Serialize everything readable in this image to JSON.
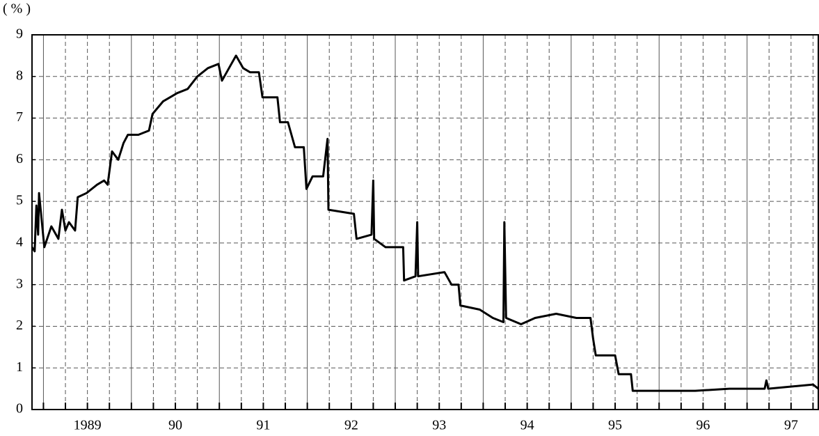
{
  "chart_data": {
    "type": "line",
    "y_axis_label": "( % )",
    "x": [
      1988.87,
      1988.9,
      1988.92,
      1988.94,
      1988.95,
      1989.01,
      1989.09,
      1989.17,
      1989.21,
      1989.25,
      1989.29,
      1989.36,
      1989.39,
      1989.49,
      1989.61,
      1989.69,
      1989.73,
      1989.78,
      1989.85,
      1989.91,
      1989.96,
      1990.08,
      1990.2,
      1990.24,
      1990.36,
      1990.44,
      1990.52,
      1990.64,
      1990.75,
      1990.87,
      1990.99,
      1991.03,
      1991.11,
      1991.19,
      1991.27,
      1991.35,
      1991.45,
      1991.49,
      1991.66,
      1991.69,
      1991.78,
      1991.86,
      1991.96,
      1991.99,
      1992.06,
      1992.18,
      1992.23,
      1992.24,
      1992.53,
      1992.56,
      1992.73,
      1992.75,
      1992.76,
      1992.89,
      1993.09,
      1993.1,
      1993.23,
      1993.25,
      1993.26,
      1993.56,
      1993.64,
      1993.72,
      1993.74,
      1993.96,
      1994.11,
      1994.23,
      1994.24,
      1994.26,
      1994.43,
      1994.59,
      1994.83,
      1995.06,
      1995.22,
      1995.25,
      1995.28,
      1995.5,
      1995.54,
      1995.68,
      1995.7,
      1996.09,
      1996.41,
      1996.8,
      1997.2,
      1997.22,
      1997.24,
      1997.75,
      1997.81
    ],
    "series": [
      {
        "color": "#000000",
        "values": [
          3.9,
          3.8,
          4.9,
          4.2,
          5.2,
          3.9,
          4.4,
          4.1,
          4.8,
          4.3,
          4.5,
          4.3,
          5.1,
          5.2,
          5.4,
          5.5,
          5.4,
          6.2,
          6.0,
          6.4,
          6.6,
          6.6,
          6.7,
          7.1,
          7.4,
          7.5,
          7.6,
          7.7,
          8.0,
          8.2,
          8.3,
          7.9,
          8.2,
          8.5,
          8.2,
          8.1,
          8.1,
          7.5,
          7.5,
          6.9,
          6.9,
          6.3,
          6.3,
          5.3,
          5.6,
          5.6,
          6.5,
          4.8,
          4.7,
          4.1,
          4.2,
          5.5,
          4.1,
          3.9,
          3.9,
          3.1,
          3.2,
          4.5,
          3.2,
          3.3,
          3.0,
          3.0,
          2.5,
          2.4,
          2.2,
          2.1,
          4.5,
          2.2,
          2.05,
          2.2,
          2.3,
          2.2,
          2.2,
          1.7,
          1.3,
          1.3,
          0.85,
          0.85,
          0.45,
          0.45,
          0.45,
          0.5,
          0.5,
          0.7,
          0.5,
          0.6,
          0.5
        ]
      }
    ],
    "xlim": [
      1988.87,
      1997.81
    ],
    "xticks": [
      {
        "value": 1989.5,
        "label": "1989"
      },
      {
        "value": 1990.5,
        "label": "90"
      },
      {
        "value": 1991.5,
        "label": "91"
      },
      {
        "value": 1992.5,
        "label": "92"
      },
      {
        "value": 1993.5,
        "label": "93"
      },
      {
        "value": 1994.5,
        "label": "94"
      },
      {
        "value": 1995.5,
        "label": "95"
      },
      {
        "value": 1996.5,
        "label": "96"
      },
      {
        "value": 1997.5,
        "label": "97"
      }
    ],
    "xgrid": [
      1989,
      1989.25,
      1989.5,
      1989.75,
      1990,
      1990.25,
      1990.5,
      1990.75,
      1991,
      1991.25,
      1991.5,
      1991.75,
      1992,
      1992.25,
      1992.5,
      1992.75,
      1993,
      1993.25,
      1993.5,
      1993.75,
      1994,
      1994.25,
      1994.5,
      1994.75,
      1995,
      1995.25,
      1995.5,
      1995.75,
      1996,
      1996.25,
      1996.5,
      1996.75,
      1997,
      1997.25,
      1997.5,
      1997.75
    ],
    "ylim": [
      0,
      9
    ],
    "yticks": [
      0,
      1,
      2,
      3,
      4,
      5,
      6,
      7,
      8,
      9
    ],
    "grid": true
  }
}
